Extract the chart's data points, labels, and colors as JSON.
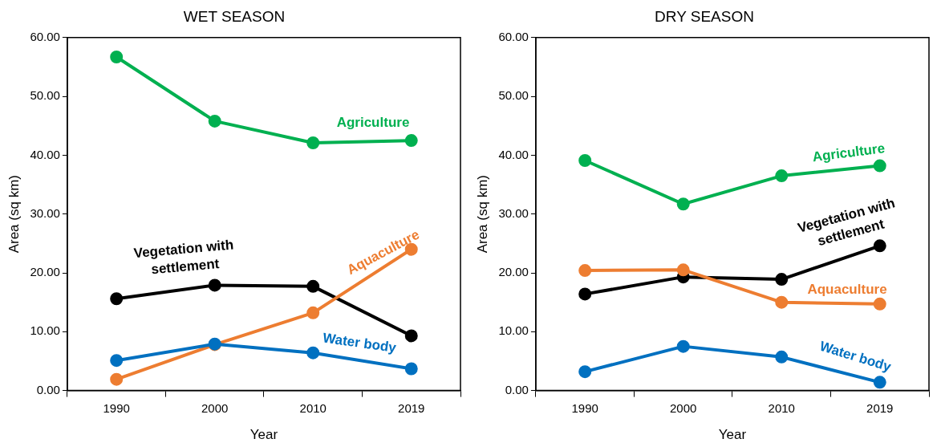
{
  "chart_data": [
    {
      "type": "line",
      "title": "WET SEASON",
      "xlabel": "Year",
      "ylabel": "Area (sq km)",
      "categories": [
        "1990",
        "2000",
        "2010",
        "2019"
      ],
      "series": [
        {
          "name": "Agriculture",
          "color": "#00b050",
          "values": [
            56.7,
            45.8,
            42.1,
            42.5
          ]
        },
        {
          "name": "Vegetation with settlement",
          "color": "#000000",
          "values": [
            15.6,
            17.9,
            17.7,
            9.3
          ]
        },
        {
          "name": "Aquaculture",
          "color": "#ed7d31",
          "values": [
            1.9,
            7.8,
            13.2,
            24.0
          ]
        },
        {
          "name": "Water body",
          "color": "#0070c0",
          "values": [
            5.1,
            7.9,
            6.4,
            3.7
          ]
        }
      ],
      "ylim": [
        0,
        60
      ],
      "yticks": [
        {
          "value": 0,
          "label": "0.00"
        },
        {
          "value": 10,
          "label": "10.00"
        },
        {
          "value": 20,
          "label": "20.00"
        },
        {
          "value": 30,
          "label": "30.00"
        },
        {
          "value": 40,
          "label": "40.00"
        },
        {
          "value": 50,
          "label": "50.00"
        },
        {
          "value": 60,
          "label": "60.00"
        }
      ],
      "marker": "circle",
      "line_style": "solid",
      "grid": false,
      "legend": false
    },
    {
      "type": "line",
      "title": "DRY SEASON",
      "xlabel": "Year",
      "ylabel": "Area (sq km)",
      "categories": [
        "1990",
        "2000",
        "2010",
        "2019"
      ],
      "series": [
        {
          "name": "Agriculture",
          "color": "#00b050",
          "values": [
            39.1,
            31.7,
            36.5,
            38.2
          ]
        },
        {
          "name": "Vegetation with settlement",
          "color": "#000000",
          "values": [
            16.4,
            19.3,
            18.9,
            24.6
          ]
        },
        {
          "name": "Aquaculture",
          "color": "#ed7d31",
          "values": [
            20.4,
            20.5,
            15.0,
            14.7
          ]
        },
        {
          "name": "Water body",
          "color": "#0070c0",
          "values": [
            3.2,
            7.5,
            5.7,
            1.4
          ]
        }
      ],
      "ylim": [
        0,
        60
      ],
      "yticks": [
        {
          "value": 0,
          "label": "0.00"
        },
        {
          "value": 10,
          "label": "10.00"
        },
        {
          "value": 20,
          "label": "20.00"
        },
        {
          "value": 30,
          "label": "30.00"
        },
        {
          "value": 40,
          "label": "40.00"
        },
        {
          "value": 50,
          "label": "50.00"
        },
        {
          "value": 60,
          "label": "60.00"
        }
      ],
      "marker": "circle",
      "line_style": "solid",
      "grid": false,
      "legend": false
    }
  ]
}
